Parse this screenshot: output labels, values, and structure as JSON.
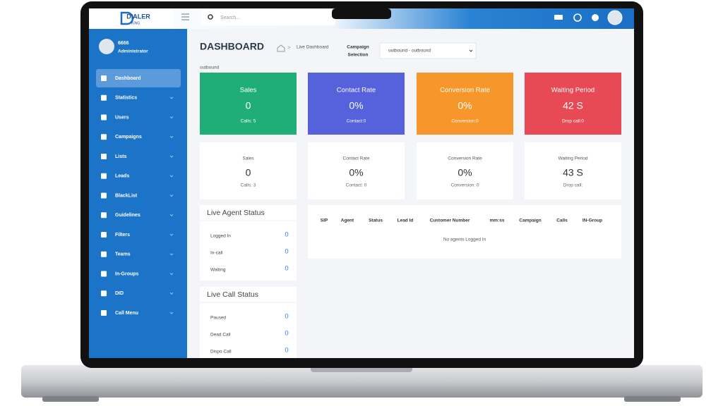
{
  "header": {
    "logo": "DIALER",
    "logo_sub": "KING",
    "search_placeholder": "Search..."
  },
  "profile": {
    "name": "6666",
    "role": "Administrator"
  },
  "sidebar": {
    "items": [
      "Dashboard",
      "Statistics",
      "Users",
      "Campaigns",
      "Lists",
      "Leads",
      "BlackList",
      "Guidelines",
      "Filters",
      "Teams",
      "In-Groups",
      "DID",
      "Call Menu"
    ]
  },
  "page": {
    "title": "DASHBOARD",
    "breadcrumb": "Live Dashboard",
    "campaign_label": [
      "Campaign",
      "Selection"
    ],
    "campaign_select": "outbound - outbound",
    "selected_campaign": "outbound"
  },
  "summary_cards": [
    {
      "title": "Sales",
      "value": "0",
      "sub": "Calls: 5",
      "color": "#1fae78"
    },
    {
      "title": "Contact Rate",
      "value": "0%",
      "sub": "Contact:0",
      "color": "#5562dc"
    },
    {
      "title": "Conversion Rate",
      "value": "0%",
      "sub": "Conversion:0",
      "color": "#f7962a"
    },
    {
      "title": "Waiting Period",
      "value": "42 S",
      "sub": "Drop call:0",
      "color": "#e84a55"
    }
  ],
  "detail_cards": [
    {
      "title": "Sales",
      "value": "0",
      "sub": "Calls: 3"
    },
    {
      "title": "Contact Rate",
      "value": "0%",
      "sub": "Contact: 0"
    },
    {
      "title": "Conversion Rate",
      "value": "0%",
      "sub": "Conversion: 0"
    },
    {
      "title": "Waiting Period",
      "value": "43 S",
      "sub": "Drop call:"
    }
  ],
  "live_agent_status": {
    "title": "Live Agent Status",
    "rows": [
      {
        "label": "Logged In",
        "value": 0
      },
      {
        "label": "In-call",
        "value": 0
      },
      {
        "label": "Waiting",
        "value": 0
      }
    ]
  },
  "live_call_status": {
    "title": "Live Call Status",
    "rows": [
      {
        "label": "Paused",
        "value": 0
      },
      {
        "label": "Dead Call",
        "value": 0
      },
      {
        "label": "Dispo Call",
        "value": 0
      }
    ]
  },
  "agents_table": {
    "columns": [
      "SIP",
      "Agent",
      "Status",
      "Lead Id",
      "Customer Number",
      "mm:ss",
      "Campaign",
      "Calls",
      "IN-Group"
    ],
    "empty_text": "No agents Logged In"
  }
}
